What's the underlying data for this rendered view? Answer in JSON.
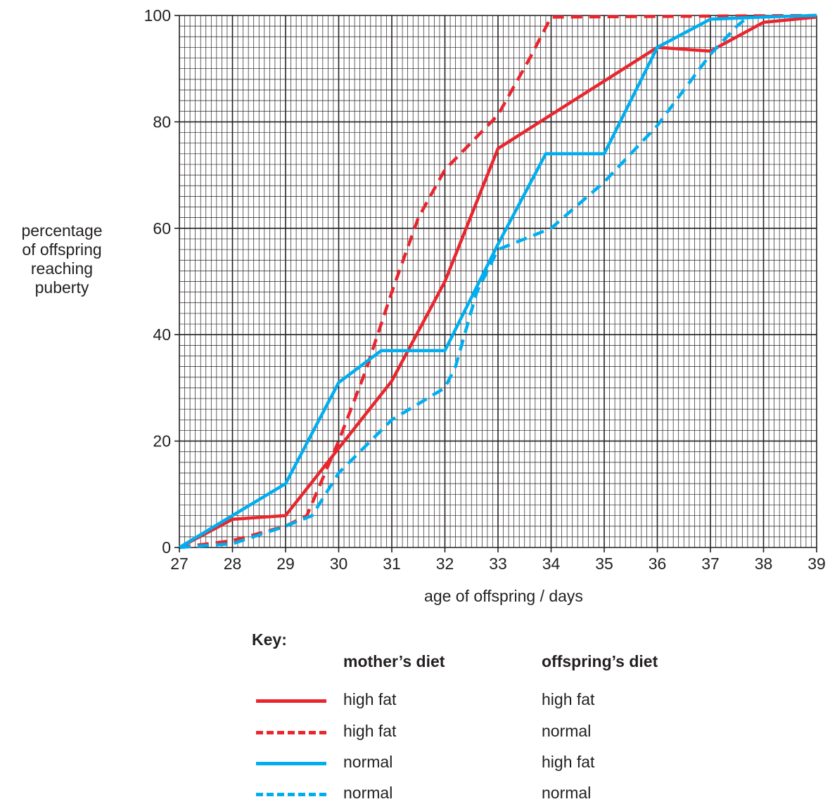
{
  "chart_data": {
    "type": "line",
    "xlabel": "age of offspring / days",
    "ylabel_lines": [
      "percentage",
      "of offspring",
      "reaching",
      "puberty"
    ],
    "xlim": [
      27,
      39
    ],
    "ylim": [
      0,
      100
    ],
    "xticks": [
      27,
      28,
      29,
      30,
      31,
      32,
      33,
      34,
      35,
      36,
      37,
      38,
      39
    ],
    "yticks": [
      0,
      20,
      40,
      60,
      80,
      100
    ],
    "grid": true,
    "series": [
      {
        "mother_diet": "high fat",
        "offspring_diet": "high fat",
        "color": "#e8262e",
        "style": "solid",
        "points": [
          [
            27,
            0
          ],
          [
            28,
            5.3
          ],
          [
            29,
            6
          ],
          [
            31,
            31.3
          ],
          [
            32,
            50
          ],
          [
            33,
            75
          ],
          [
            36,
            94
          ],
          [
            37,
            93.3
          ],
          [
            38,
            98.7
          ],
          [
            39,
            99.7
          ]
        ]
      },
      {
        "mother_diet": "high fat",
        "offspring_diet": "normal",
        "color": "#e8262e",
        "style": "dashed",
        "points": [
          [
            27,
            0
          ],
          [
            28,
            1.3
          ],
          [
            29,
            4
          ],
          [
            29.4,
            6
          ],
          [
            30,
            20
          ],
          [
            30.5,
            33
          ],
          [
            31,
            48
          ],
          [
            31.5,
            62
          ],
          [
            32,
            71
          ],
          [
            33,
            81.3
          ],
          [
            33.6,
            92
          ],
          [
            34,
            99.7
          ],
          [
            39,
            100
          ]
        ]
      },
      {
        "mother_diet": "normal",
        "offspring_diet": "high fat",
        "color": "#00aeef",
        "style": "solid",
        "points": [
          [
            27,
            0
          ],
          [
            28,
            6
          ],
          [
            29,
            12
          ],
          [
            30,
            31
          ],
          [
            30.8,
            37
          ],
          [
            32,
            37
          ],
          [
            33,
            57
          ],
          [
            33.9,
            74
          ],
          [
            35,
            74
          ],
          [
            36,
            94
          ],
          [
            37,
            99.3
          ],
          [
            38,
            99.7
          ],
          [
            39,
            100
          ]
        ]
      },
      {
        "mother_diet": "normal",
        "offspring_diet": "normal",
        "color": "#00aeef",
        "style": "dashed",
        "points": [
          [
            27,
            0
          ],
          [
            28,
            0.7
          ],
          [
            29,
            4
          ],
          [
            29.5,
            6
          ],
          [
            30,
            14
          ],
          [
            31,
            24
          ],
          [
            32,
            30
          ],
          [
            32.2,
            34
          ],
          [
            32.6,
            48
          ],
          [
            33,
            56
          ],
          [
            34,
            60
          ],
          [
            35,
            68.7
          ],
          [
            36,
            79.3
          ],
          [
            37,
            92.7
          ],
          [
            37.5,
            98
          ],
          [
            37.7,
            99.7
          ]
        ]
      }
    ],
    "key": {
      "title": "Key:",
      "mother_header": "mother’s diet",
      "offspring_header": "offspring’s diet"
    }
  }
}
